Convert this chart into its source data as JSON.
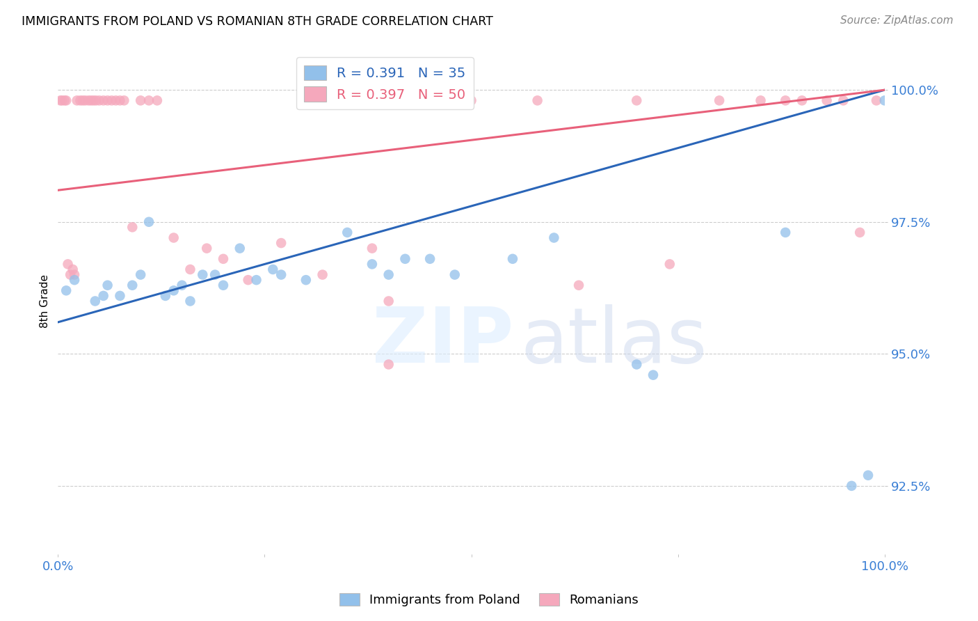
{
  "title": "IMMIGRANTS FROM POLAND VS ROMANIAN 8TH GRADE CORRELATION CHART",
  "source": "Source: ZipAtlas.com",
  "ylabel": "8th Grade",
  "ytick_values": [
    92.5,
    95.0,
    97.5,
    100.0
  ],
  "xmin": 0.0,
  "xmax": 100.0,
  "ymin": 91.2,
  "ymax": 100.8,
  "legend_blue_r": "R = 0.391",
  "legend_blue_n": "N = 35",
  "legend_pink_r": "R = 0.397",
  "legend_pink_n": "N = 50",
  "blue_color": "#92c0ea",
  "pink_color": "#f5a8bc",
  "blue_line_color": "#2a65b8",
  "pink_line_color": "#e8607a",
  "blue_scatter_x": [
    1.0,
    2.0,
    4.5,
    5.5,
    6.0,
    7.5,
    9.0,
    10.0,
    11.0,
    13.0,
    14.0,
    15.0,
    16.0,
    17.5,
    19.0,
    20.0,
    22.0,
    24.0,
    26.0,
    27.0,
    30.0,
    35.0,
    38.0,
    40.0,
    45.0,
    48.0,
    55.0,
    60.0,
    70.0,
    72.0,
    88.0,
    96.0,
    98.0,
    100.0,
    42.0
  ],
  "blue_scatter_y": [
    96.2,
    96.4,
    96.0,
    96.1,
    96.3,
    96.1,
    96.3,
    96.5,
    97.5,
    96.1,
    96.2,
    96.3,
    96.0,
    96.5,
    96.5,
    96.3,
    97.0,
    96.4,
    96.6,
    96.5,
    96.4,
    97.3,
    96.7,
    96.5,
    96.8,
    96.5,
    96.8,
    97.2,
    94.8,
    94.6,
    97.3,
    92.5,
    92.7,
    99.8,
    96.8
  ],
  "pink_scatter_x": [
    0.3,
    0.5,
    0.8,
    1.0,
    1.2,
    1.5,
    1.8,
    2.0,
    2.3,
    2.7,
    3.0,
    3.3,
    3.7,
    4.0,
    4.3,
    4.6,
    5.0,
    5.5,
    6.0,
    6.5,
    7.0,
    7.5,
    8.0,
    9.0,
    10.0,
    11.0,
    12.0,
    14.0,
    16.0,
    18.0,
    20.0,
    23.0,
    27.0,
    32.0,
    40.0,
    38.0,
    50.0,
    58.0,
    63.0,
    70.0,
    74.0,
    80.0,
    85.0,
    88.0,
    90.0,
    93.0,
    95.0,
    97.0,
    99.0,
    40.0
  ],
  "pink_scatter_y": [
    99.8,
    99.8,
    99.8,
    99.8,
    96.7,
    96.5,
    96.6,
    96.5,
    99.8,
    99.8,
    99.8,
    99.8,
    99.8,
    99.8,
    99.8,
    99.8,
    99.8,
    99.8,
    99.8,
    99.8,
    99.8,
    99.8,
    99.8,
    97.4,
    99.8,
    99.8,
    99.8,
    97.2,
    96.6,
    97.0,
    96.8,
    96.4,
    97.1,
    96.5,
    96.0,
    97.0,
    99.8,
    99.8,
    96.3,
    99.8,
    96.7,
    99.8,
    99.8,
    99.8,
    99.8,
    99.8,
    99.8,
    97.3,
    99.8,
    94.8
  ],
  "blue_line_x0": 0.0,
  "blue_line_x1": 100.0,
  "blue_line_y0": 95.6,
  "blue_line_y1": 100.0,
  "pink_line_x0": 0.0,
  "pink_line_x1": 100.0,
  "pink_line_y0": 98.1,
  "pink_line_y1": 100.0,
  "grid_color": "#cccccc",
  "tick_color": "#3a7fd5",
  "background_color": "#ffffff"
}
